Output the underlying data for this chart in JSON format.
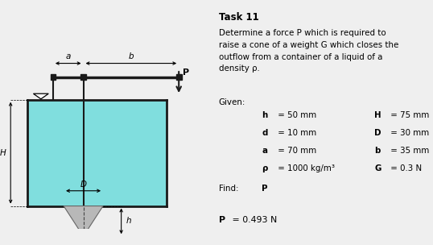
{
  "liquid_color": "#80DEDE",
  "cone_color": "#b8b8b8",
  "border_color": "#1a1a1a",
  "bg_color": "#efefef",
  "title": "Task 11",
  "line1": "Determine a force P which is required to",
  "line2": "raise a cone of a weight G which closes the",
  "line3": "outflow from a container of a liquid of a",
  "line4": "density ρ.",
  "given": "Given:",
  "find_label": "Find:",
  "find_val": "P",
  "pl1": "h = 50 mm",
  "pl2": "d = 10 mm",
  "pl3": "a = 70 mm",
  "pl4": "ρ = 1000 kg/m³",
  "pl1b": "h",
  "pl2b": "d",
  "pl3b": "a",
  "pl4b": "ρ",
  "pl1r": " = 50 mm",
  "pl2r": " = 10 mm",
  "pl3r": " = 70 mm",
  "pl4r": " = 1000 kg/m³",
  "pr1": "H = 75 mm",
  "pr2": "D = 30 mm",
  "pr3": "b = 35 mm",
  "pr4": "G = 0.3 N",
  "pr1b": "H",
  "pr2b": "D",
  "pr3b": "b",
  "pr4b": "G",
  "pr1r": " = 75 mm",
  "pr2r": " = 30 mm",
  "pr3r": " = 35 mm",
  "pr4r": " = 0.3 N",
  "result_b": "P",
  "result_r": " = 0.493 N"
}
